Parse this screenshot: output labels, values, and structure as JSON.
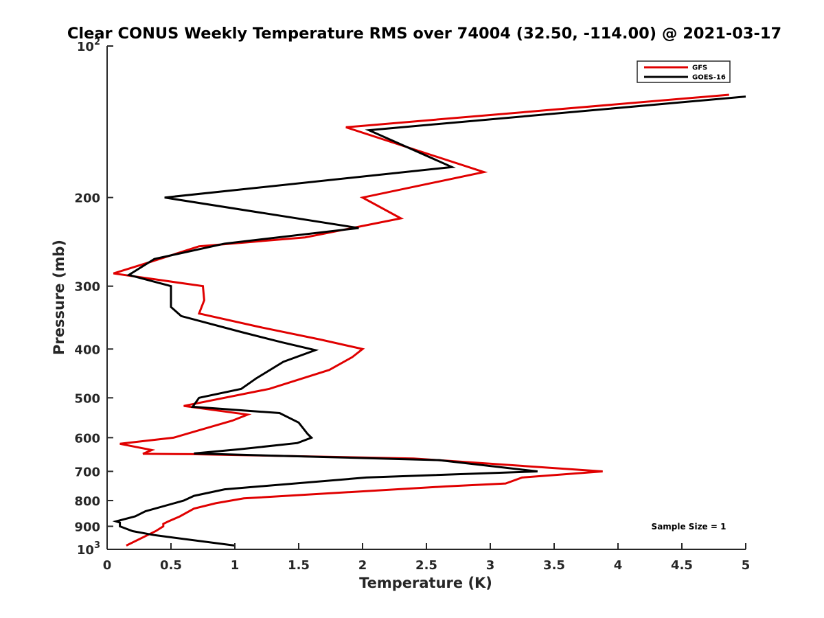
{
  "chart_data": {
    "type": "line",
    "title": "Clear CONUS Weekly Temperature RMS over 74004 (32.50, -114.00) @ 2021-03-17",
    "xlabel": "Temperature (K)",
    "ylabel": "Pressure (mb)",
    "xlim": [
      0,
      5
    ],
    "ylim": [
      100,
      1000
    ],
    "y_scale": "log",
    "y_reversed": true,
    "grid": false,
    "legend_position": "top-right",
    "x_ticks": [
      "0",
      "0.5",
      "1",
      "1.5",
      "2",
      "2.5",
      "3",
      "3.5",
      "4",
      "4.5",
      "5"
    ],
    "x_tick_values": [
      0,
      0.5,
      1,
      1.5,
      2,
      2.5,
      3,
      3.5,
      4,
      4.5,
      5
    ],
    "y_ticks": [
      {
        "value": 100,
        "base": "10",
        "exp": "2"
      },
      {
        "value": 200,
        "label": "200"
      },
      {
        "value": 300,
        "label": "300"
      },
      {
        "value": 400,
        "label": "400"
      },
      {
        "value": 500,
        "label": "500"
      },
      {
        "value": 600,
        "label": "600"
      },
      {
        "value": 700,
        "label": "700"
      },
      {
        "value": 800,
        "label": "800"
      },
      {
        "value": 900,
        "label": "900"
      },
      {
        "value": 1000,
        "base": "10",
        "exp": "3"
      }
    ],
    "annotation": "Sample Size = 1",
    "series": [
      {
        "name": "GFS",
        "color": "#e00000",
        "points": [
          [
            4.87,
            125
          ],
          [
            1.87,
            145
          ],
          [
            2.95,
            178
          ],
          [
            2.0,
            200
          ],
          [
            2.3,
            220
          ],
          [
            1.55,
            240
          ],
          [
            0.72,
            250
          ],
          [
            0.35,
            268
          ],
          [
            0.05,
            283
          ],
          [
            0.75,
            300
          ],
          [
            0.76,
            320
          ],
          [
            0.72,
            340
          ],
          [
            1.2,
            362
          ],
          [
            1.67,
            383
          ],
          [
            2.0,
            400
          ],
          [
            1.92,
            415
          ],
          [
            1.74,
            440
          ],
          [
            1.27,
            480
          ],
          [
            0.6,
            519
          ],
          [
            1.1,
            540
          ],
          [
            0.98,
            555
          ],
          [
            0.72,
            580
          ],
          [
            0.52,
            600
          ],
          [
            0.1,
            617
          ],
          [
            0.35,
            635
          ],
          [
            0.28,
            646
          ],
          [
            0.66,
            647
          ],
          [
            2.4,
            660
          ],
          [
            3.88,
            700
          ],
          [
            3.25,
            720
          ],
          [
            3.12,
            740
          ],
          [
            2.65,
            750
          ],
          [
            1.07,
            792
          ],
          [
            0.85,
            810
          ],
          [
            0.68,
            830
          ],
          [
            0.57,
            860
          ],
          [
            0.48,
            880
          ],
          [
            0.44,
            890
          ],
          [
            0.44,
            900
          ],
          [
            0.38,
            920
          ],
          [
            0.15,
            983
          ]
        ]
      },
      {
        "name": "GOES-16",
        "color": "#000000",
        "points": [
          [
            5.0,
            126
          ],
          [
            2.05,
            147
          ],
          [
            2.7,
            174
          ],
          [
            0.45,
            200
          ],
          [
            1.97,
            230
          ],
          [
            0.92,
            247
          ],
          [
            0.37,
            265
          ],
          [
            0.17,
            285
          ],
          [
            0.5,
            300
          ],
          [
            0.5,
            330
          ],
          [
            0.58,
            344
          ],
          [
            1.05,
            370
          ],
          [
            1.37,
            388
          ],
          [
            1.63,
            402
          ],
          [
            1.38,
            424
          ],
          [
            1.17,
            457
          ],
          [
            1.05,
            480
          ],
          [
            0.72,
            500
          ],
          [
            0.67,
            521
          ],
          [
            1.35,
            536
          ],
          [
            1.5,
            560
          ],
          [
            1.57,
            590
          ],
          [
            1.6,
            600
          ],
          [
            1.49,
            615
          ],
          [
            1.03,
            633
          ],
          [
            0.68,
            645
          ],
          [
            2.6,
            665
          ],
          [
            3.37,
            700
          ],
          [
            2.03,
            720
          ],
          [
            0.92,
            760
          ],
          [
            0.68,
            783
          ],
          [
            0.6,
            800
          ],
          [
            0.3,
            840
          ],
          [
            0.22,
            860
          ],
          [
            0.07,
            880
          ],
          [
            0.1,
            885
          ],
          [
            0.1,
            900
          ],
          [
            0.2,
            920
          ],
          [
            0.37,
            937
          ],
          [
            1.0,
            983
          ]
        ]
      }
    ]
  }
}
